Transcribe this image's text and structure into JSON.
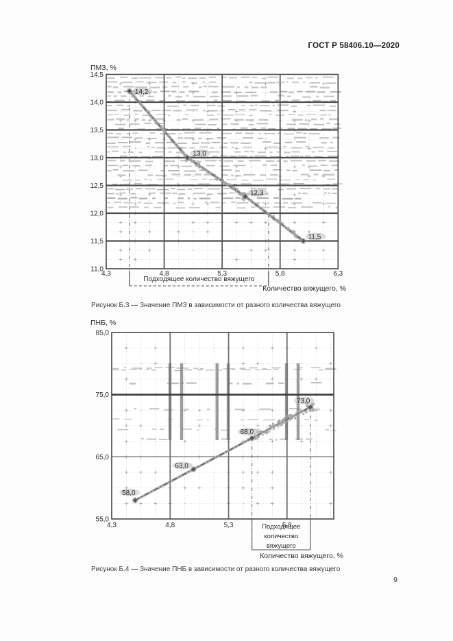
{
  "page": {
    "header": "ГОСТ Р 58406.10—2020",
    "page_number": "9"
  },
  "chart_data": [
    {
      "type": "line",
      "title": "",
      "ylabel": "ПМЗ, %",
      "xlabel": "Количество вяжущего, %",
      "caption": "Рисунок Б.3 — Значение ПМЗ в зависимости от разного количества вяжущего",
      "x": [
        4.5,
        5.0,
        5.5,
        6.0
      ],
      "values": [
        14.2,
        13.0,
        12.3,
        11.5
      ],
      "point_labels": [
        "14,2",
        "13,0",
        "12,3",
        "11,5"
      ],
      "xlim": [
        4.3,
        6.3
      ],
      "ylim": [
        11.0,
        14.5
      ],
      "xticks": {
        "values": [
          4.3,
          4.8,
          5.3,
          5.8,
          6.3
        ],
        "labels": [
          "4,3",
          "4,8",
          "5,3",
          "5,8",
          "6,3"
        ]
      },
      "yticks": {
        "values": [
          14.5,
          14.0,
          13.5,
          13.0,
          12.5,
          12.0,
          11.5,
          11.0
        ],
        "labels": [
          "14,5",
          "14,0",
          "13,5",
          "13,0",
          "12,5",
          "12,0",
          "11,5",
          "11,0"
        ]
      },
      "x_major_grid": [
        4.8,
        5.3,
        5.8
      ],
      "y_major_grid": [
        14.0,
        13.5,
        13.0,
        12.5,
        12.0,
        11.5
      ],
      "grid": "on",
      "legend": "none",
      "range_bracket": {
        "label_lines": [
          "Подходящее количество вяжущего"
        ],
        "from": 4.5,
        "to": 5.7
      }
    },
    {
      "type": "line",
      "title": "",
      "ylabel": "ПНБ, %",
      "xlabel": "Количество вяжущего, %",
      "caption": "Рисунок Б.4 — Значение ПНБ в зависимости от разного количества вяжущего",
      "x": [
        4.5,
        5.0,
        5.5,
        6.0
      ],
      "values": [
        58.0,
        63.0,
        68.0,
        73.0
      ],
      "point_labels": [
        "58,0",
        "63,0",
        "68,0",
        "73,0"
      ],
      "xlim": [
        4.3,
        6.2
      ],
      "ylim": [
        55.0,
        85.0
      ],
      "xticks": {
        "values": [
          4.3,
          4.8,
          5.3,
          5.8
        ],
        "labels": [
          "4,3",
          "4,8",
          "5,3",
          "5,8"
        ]
      },
      "yticks": {
        "values": [
          85.0,
          75.0,
          65.0,
          55.0
        ],
        "labels": [
          "85,0",
          "75,0",
          "65,0",
          "55,0"
        ]
      },
      "x_major_grid": [
        4.8,
        5.3,
        5.8
      ],
      "y_major_grid": [
        75.0,
        65.0
      ],
      "grid": "on",
      "legend": "none",
      "range_bracket": {
        "label_lines": [
          "Подходящее",
          "количество",
          "вяжущего"
        ],
        "from": 5.5,
        "to": 6.0
      }
    }
  ]
}
